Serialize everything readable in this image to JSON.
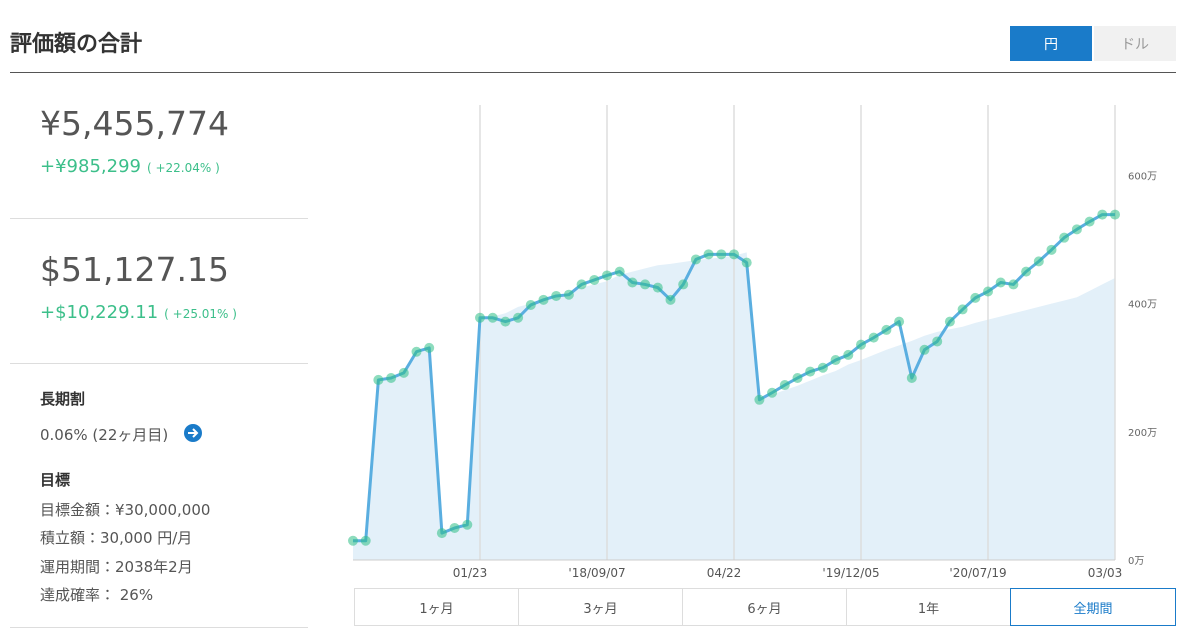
{
  "header": {
    "title": "評価額の合計",
    "currency_toggle": [
      "円",
      "ドル"
    ]
  },
  "summary": {
    "jpy": {
      "total": "¥5,455,774",
      "gain": "+¥985,299",
      "gain_pct": "( +22.04% )"
    },
    "usd": {
      "total": "$51,127.15",
      "gain": "+$10,229.11",
      "gain_pct": "( +25.01% )"
    }
  },
  "long_term_discount": {
    "title": "長期割",
    "text": "0.06% (22ヶ月目)"
  },
  "goal": {
    "title": "目標",
    "items": [
      "目標金額：¥30,000,000",
      "積立額：30,000 円/月",
      "運用期間：2038年2月",
      "達成確率： 26%"
    ]
  },
  "period_buttons": [
    "1ヶ月",
    "3ヶ月",
    "6ヶ月",
    "1年",
    "全期間"
  ],
  "chart_data": {
    "type": "line",
    "categories": [
      null,
      null,
      null,
      null,
      null,
      null,
      null,
      null,
      null,
      null,
      "01/23",
      null,
      null,
      null,
      null,
      null,
      null,
      null,
      null,
      null,
      "'18/09/07",
      null,
      null,
      null,
      null,
      null,
      null,
      null,
      null,
      null,
      "04/22",
      null,
      null,
      null,
      null,
      null,
      null,
      null,
      null,
      null,
      "'19/12/05",
      null,
      null,
      null,
      null,
      null,
      null,
      null,
      null,
      null,
      "'20/07/19",
      null,
      null,
      null,
      null,
      null,
      null,
      null,
      null,
      null,
      "03/03"
    ],
    "series": [
      {
        "color": "#5aaee0",
        "marker_color": "#2fbf86",
        "values": [
          30,
          30,
          281,
          284,
          292,
          325,
          331,
          42,
          50,
          55,
          378,
          378,
          372,
          378,
          398,
          406,
          412,
          414,
          430,
          437,
          444,
          450,
          433,
          430,
          425,
          406,
          430,
          469,
          477,
          477,
          477,
          464,
          250,
          261,
          273,
          284,
          294,
          300,
          312,
          320,
          336,
          347,
          359,
          372,
          284,
          328,
          341,
          372,
          391,
          409,
          419,
          433,
          430,
          450,
          466,
          484,
          503,
          516,
          528,
          539,
          539
        ]
      },
      {
        "color": "#e3f0f9",
        "area": true,
        "values": [
          30,
          30,
          281,
          284,
          290,
          320,
          330,
          42,
          50,
          55,
          378,
          380,
          385,
          395,
          400,
          405,
          410,
          415,
          425,
          430,
          435,
          445,
          450,
          455,
          460,
          462,
          465,
          468,
          470,
          472,
          475,
          480,
          250,
          258,
          265,
          272,
          280,
          288,
          295,
          305,
          312,
          320,
          328,
          335,
          342,
          350,
          356,
          360,
          364,
          370,
          375,
          380,
          385,
          390,
          395,
          400,
          405,
          410,
          420,
          430,
          440
        ]
      }
    ],
    "ylim": [
      0,
      710
    ],
    "yticks": [
      {
        "value": 0,
        "label": "0万"
      },
      {
        "value": 200,
        "label": "200万"
      },
      {
        "value": 400,
        "label": "400万"
      },
      {
        "value": 600,
        "label": "600万"
      }
    ],
    "grid": true,
    "markers": true
  }
}
